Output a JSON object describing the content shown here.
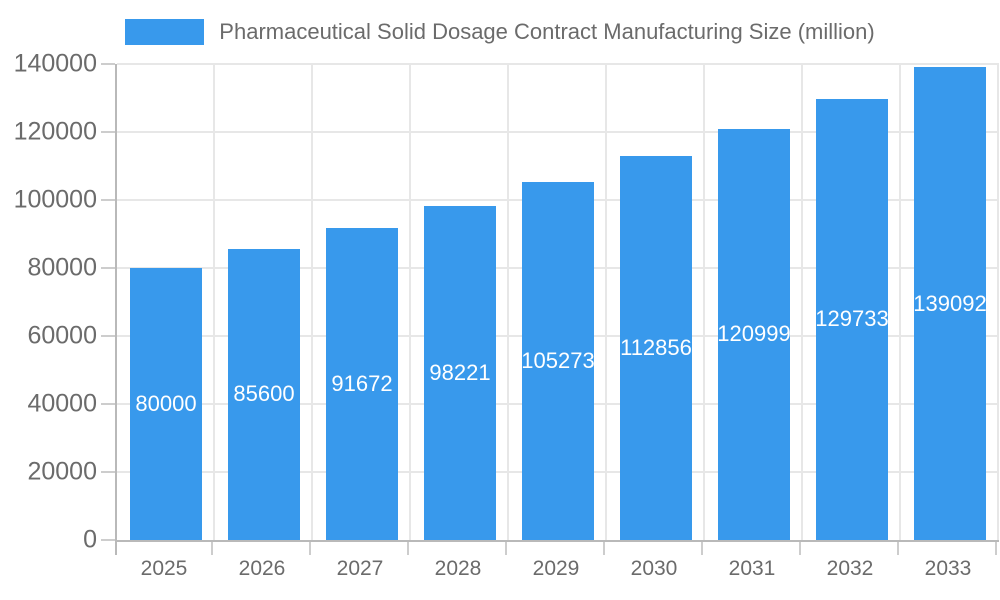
{
  "legend": {
    "label": "Pharmaceutical Solid Dosage Contract Manufacturing Size (million)"
  },
  "chart_data": {
    "type": "bar",
    "title": "Pharmaceutical Solid Dosage Contract Manufacturing Size (million)",
    "categories": [
      "2025",
      "2026",
      "2027",
      "2028",
      "2029",
      "2030",
      "2031",
      "2032",
      "2033"
    ],
    "values": [
      80000,
      85600,
      91672,
      98221,
      105273,
      112856,
      120999,
      129733,
      139092
    ],
    "bar_value_labels": [
      "80000",
      "85600",
      "91672",
      "98221",
      "105273",
      "112856",
      "120999",
      "129733",
      "139092"
    ],
    "xlabel": "",
    "ylabel": "",
    "ylim": [
      0,
      140000
    ],
    "yticks": [
      0,
      20000,
      40000,
      60000,
      80000,
      100000,
      120000,
      140000
    ],
    "ytick_labels": [
      "0",
      "20000",
      "40000",
      "60000",
      "80000",
      "100000",
      "120000",
      "140000"
    ],
    "grid": true,
    "legend_position": "top",
    "value_labels_position": "center-inside"
  },
  "colors": {
    "bar": "#3899EC",
    "grid": "#E7E7E7",
    "axis": "#B9B9B9",
    "tick": "#CDCDCD",
    "text": "#6B6B6B",
    "value_label": "#FFFFFF",
    "background": "#FFFFFF"
  }
}
